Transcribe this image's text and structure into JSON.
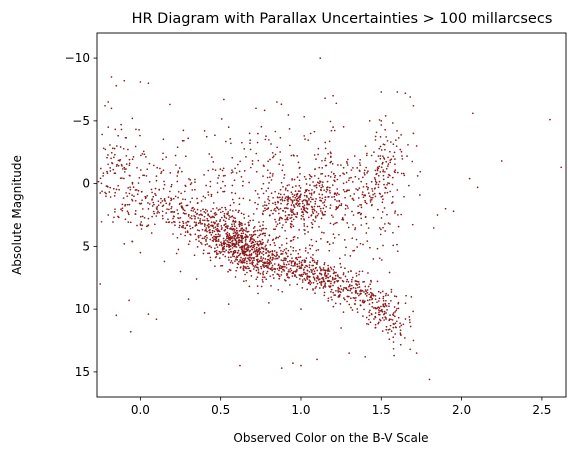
{
  "chart_data": {
    "type": "scatter",
    "title": "HR Diagram with Parallax Uncertainties > 100 millarcsecs",
    "xlabel": "Observed Color on the B-V Scale",
    "ylabel": "Absolute Magnitude",
    "xlim": [
      -0.27,
      2.65
    ],
    "ylim": [
      17,
      -12
    ],
    "y_inverted": true,
    "grid": false,
    "legend": "none",
    "x_ticks": [
      0.0,
      0.5,
      1.0,
      1.5,
      2.0,
      2.5
    ],
    "x_tick_labels": [
      "0.0",
      "0.5",
      "1.0",
      "1.5",
      "2.0",
      "2.5"
    ],
    "y_ticks": [
      -10,
      -5,
      0,
      5,
      10,
      15
    ],
    "y_tick_labels": [
      "−10",
      "−5",
      "0",
      "5",
      "10",
      "15"
    ],
    "marker_color": "#8b1a1a",
    "series": [
      {
        "points": [
          [
            -0.18,
            -8.5
          ],
          [
            -0.15,
            -7.8
          ],
          [
            -0.1,
            -8.2
          ],
          [
            0.0,
            -8.1
          ],
          [
            0.05,
            -8.0
          ],
          [
            -0.2,
            -6.5
          ],
          [
            -0.22,
            -6.2
          ],
          [
            -0.18,
            -6.0
          ],
          [
            -0.05,
            -5.2
          ],
          [
            0.52,
            -6.7
          ],
          [
            0.85,
            -6.5
          ],
          [
            1.2,
            -7.0
          ],
          [
            1.15,
            -6.8
          ],
          [
            1.5,
            -7.3
          ],
          [
            1.6,
            -7.3
          ],
          [
            1.65,
            -7.2
          ],
          [
            1.68,
            -6.9
          ],
          [
            1.12,
            -10.0
          ],
          [
            1.22,
            -6.4
          ],
          [
            0.72,
            -6.0
          ],
          [
            1.7,
            -6.2
          ],
          [
            2.07,
            -5.6
          ],
          [
            2.55,
            -5.1
          ],
          [
            -0.2,
            -4.5
          ],
          [
            0.55,
            -4.5
          ],
          [
            -0.12,
            -4.7
          ],
          [
            0.68,
            -4.0
          ],
          [
            1.02,
            -3.8
          ],
          [
            1.5,
            -5.0
          ],
          [
            1.7,
            -4.0
          ],
          [
            2.25,
            -1.8
          ],
          [
            2.62,
            -1.3
          ],
          [
            2.05,
            -0.4
          ],
          [
            2.1,
            0.3
          ],
          [
            1.9,
            2.0
          ],
          [
            1.95,
            2.2
          ],
          [
            1.85,
            2.5
          ],
          [
            1.2,
            -4.5
          ],
          [
            0.4,
            -4.2
          ],
          [
            1.72,
            -3.0
          ],
          [
            -0.25,
            8.0
          ],
          [
            -0.15,
            10.5
          ],
          [
            -0.06,
            11.8
          ],
          [
            -0.07,
            9.3
          ],
          [
            0.05,
            10.4
          ],
          [
            0.1,
            10.8
          ],
          [
            0.62,
            14.5
          ],
          [
            0.95,
            14.3
          ],
          [
            1.0,
            14.5
          ],
          [
            0.88,
            14.7
          ],
          [
            1.1,
            14.0
          ],
          [
            1.3,
            13.5
          ],
          [
            1.4,
            13.8
          ],
          [
            1.58,
            13.7
          ],
          [
            1.68,
            13.2
          ],
          [
            1.72,
            13.5
          ],
          [
            1.8,
            15.6
          ],
          [
            0.3,
            9.2
          ],
          [
            0.4,
            10.3
          ],
          [
            0.55,
            9.6
          ],
          [
            0.8,
            9.5
          ],
          [
            1.0,
            10.0
          ],
          [
            1.25,
            11.5
          ],
          [
            1.55,
            12.4
          ],
          [
            1.62,
            12.0
          ],
          [
            1.7,
            12.5
          ],
          [
            -0.2,
            2.5
          ],
          [
            -0.1,
            4.8
          ],
          [
            0.0,
            5.5
          ],
          [
            0.15,
            6.2
          ],
          [
            0.25,
            7.0
          ],
          [
            0.35,
            7.6
          ]
        ]
      }
    ],
    "clusters": [
      {
        "x": -0.05,
        "y": 0.3,
        "sx": 0.13,
        "sy": 1.6,
        "n": 120
      },
      {
        "x": -0.15,
        "y": -1.8,
        "sx": 0.06,
        "sy": 1.3,
        "n": 45
      },
      {
        "x": 0.12,
        "y": 2.2,
        "sx": 0.12,
        "sy": 1.0,
        "n": 95
      },
      {
        "x": 0.3,
        "y": 1.2,
        "sx": 0.15,
        "sy": 1.5,
        "n": 55
      },
      {
        "x": 0.38,
        "y": 3.2,
        "sx": 0.09,
        "sy": 0.9,
        "n": 130
      },
      {
        "x": 0.52,
        "y": 4.0,
        "sx": 0.08,
        "sy": 1.0,
        "n": 210
      },
      {
        "x": 0.63,
        "y": 5.0,
        "sx": 0.07,
        "sy": 1.0,
        "n": 270
      },
      {
        "x": 0.75,
        "y": 5.8,
        "sx": 0.07,
        "sy": 0.9,
        "n": 190
      },
      {
        "x": 0.88,
        "y": 6.5,
        "sx": 0.08,
        "sy": 0.8,
        "n": 120
      },
      {
        "x": 1.0,
        "y": 6.8,
        "sx": 0.07,
        "sy": 0.7,
        "n": 80
      },
      {
        "x": 1.12,
        "y": 7.4,
        "sx": 0.07,
        "sy": 0.6,
        "n": 110
      },
      {
        "x": 1.25,
        "y": 8.0,
        "sx": 0.07,
        "sy": 0.7,
        "n": 100
      },
      {
        "x": 1.38,
        "y": 8.9,
        "sx": 0.06,
        "sy": 0.7,
        "n": 85
      },
      {
        "x": 1.5,
        "y": 10.1,
        "sx": 0.05,
        "sy": 0.9,
        "n": 90
      },
      {
        "x": 1.6,
        "y": 11.2,
        "sx": 0.05,
        "sy": 0.9,
        "n": 45
      },
      {
        "x": 1.0,
        "y": 1.6,
        "sx": 0.09,
        "sy": 0.9,
        "n": 170
      },
      {
        "x": 0.9,
        "y": 2.6,
        "sx": 0.07,
        "sy": 0.8,
        "n": 60
      },
      {
        "x": 1.15,
        "y": 0.5,
        "sx": 0.12,
        "sy": 1.4,
        "n": 120
      },
      {
        "x": 1.32,
        "y": 0.2,
        "sx": 0.1,
        "sy": 1.8,
        "n": 90
      },
      {
        "x": 1.5,
        "y": 0.0,
        "sx": 0.07,
        "sy": 2.2,
        "n": 110
      },
      {
        "x": 1.58,
        "y": -2.0,
        "sx": 0.07,
        "sy": 1.6,
        "n": 40
      },
      {
        "x": 0.7,
        "y": -0.8,
        "sx": 0.28,
        "sy": 2.4,
        "n": 200
      },
      {
        "x": 1.05,
        "y": 3.8,
        "sx": 0.2,
        "sy": 1.6,
        "n": 70
      },
      {
        "x": 1.3,
        "y": 4.5,
        "sx": 0.2,
        "sy": 1.5,
        "n": 40
      }
    ]
  }
}
